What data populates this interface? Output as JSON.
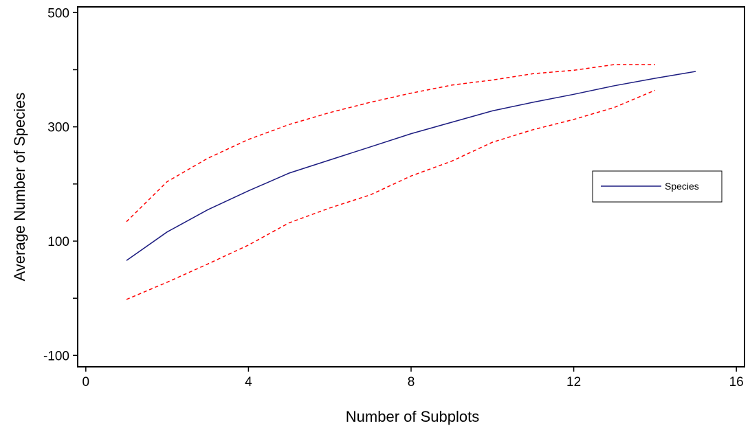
{
  "chart_data": {
    "type": "line",
    "title": "",
    "xlabel": "Number of Subplots",
    "ylabel": "Average Number of Species",
    "xlim": [
      -0.2,
      16.2
    ],
    "ylim": [
      -120,
      510
    ],
    "xticks": [
      0,
      4,
      8,
      12,
      16
    ],
    "xtick_labels": [
      "0",
      "4",
      "8",
      "12",
      "16"
    ],
    "yticks": [
      -100,
      0,
      100,
      200,
      300,
      400,
      500
    ],
    "ytick_labels": [
      "-100",
      "",
      "100",
      "",
      "300",
      "",
      "500"
    ],
    "grid": false,
    "legend": {
      "position": "right",
      "entries": [
        "Species"
      ]
    },
    "series": [
      {
        "name": "Species",
        "color": "#1c1c80",
        "style": "solid",
        "x": [
          1,
          2,
          3,
          4,
          5,
          6,
          7,
          8,
          9,
          10,
          11,
          12,
          13,
          14,
          15
        ],
        "y": [
          66,
          116,
          155,
          188,
          219,
          242,
          265,
          288,
          308,
          328,
          343,
          357,
          372,
          385,
          397
        ]
      },
      {
        "color": "#ff0000",
        "style": "dashed",
        "x": [
          1,
          2,
          3,
          4,
          5,
          6,
          7,
          8,
          9,
          10,
          11,
          12,
          13,
          14
        ],
        "y": [
          134,
          204,
          245,
          278,
          304,
          325,
          343,
          359,
          373,
          382,
          393,
          399,
          409,
          409
        ]
      },
      {
        "color": "#ff0000",
        "style": "dashed",
        "x": [
          1,
          2,
          3,
          4,
          5,
          6,
          7,
          8,
          9,
          10,
          11,
          12,
          13,
          14
        ],
        "y": [
          -2,
          28,
          60,
          93,
          132,
          158,
          181,
          214,
          240,
          273,
          295,
          313,
          334,
          364
        ]
      }
    ]
  }
}
